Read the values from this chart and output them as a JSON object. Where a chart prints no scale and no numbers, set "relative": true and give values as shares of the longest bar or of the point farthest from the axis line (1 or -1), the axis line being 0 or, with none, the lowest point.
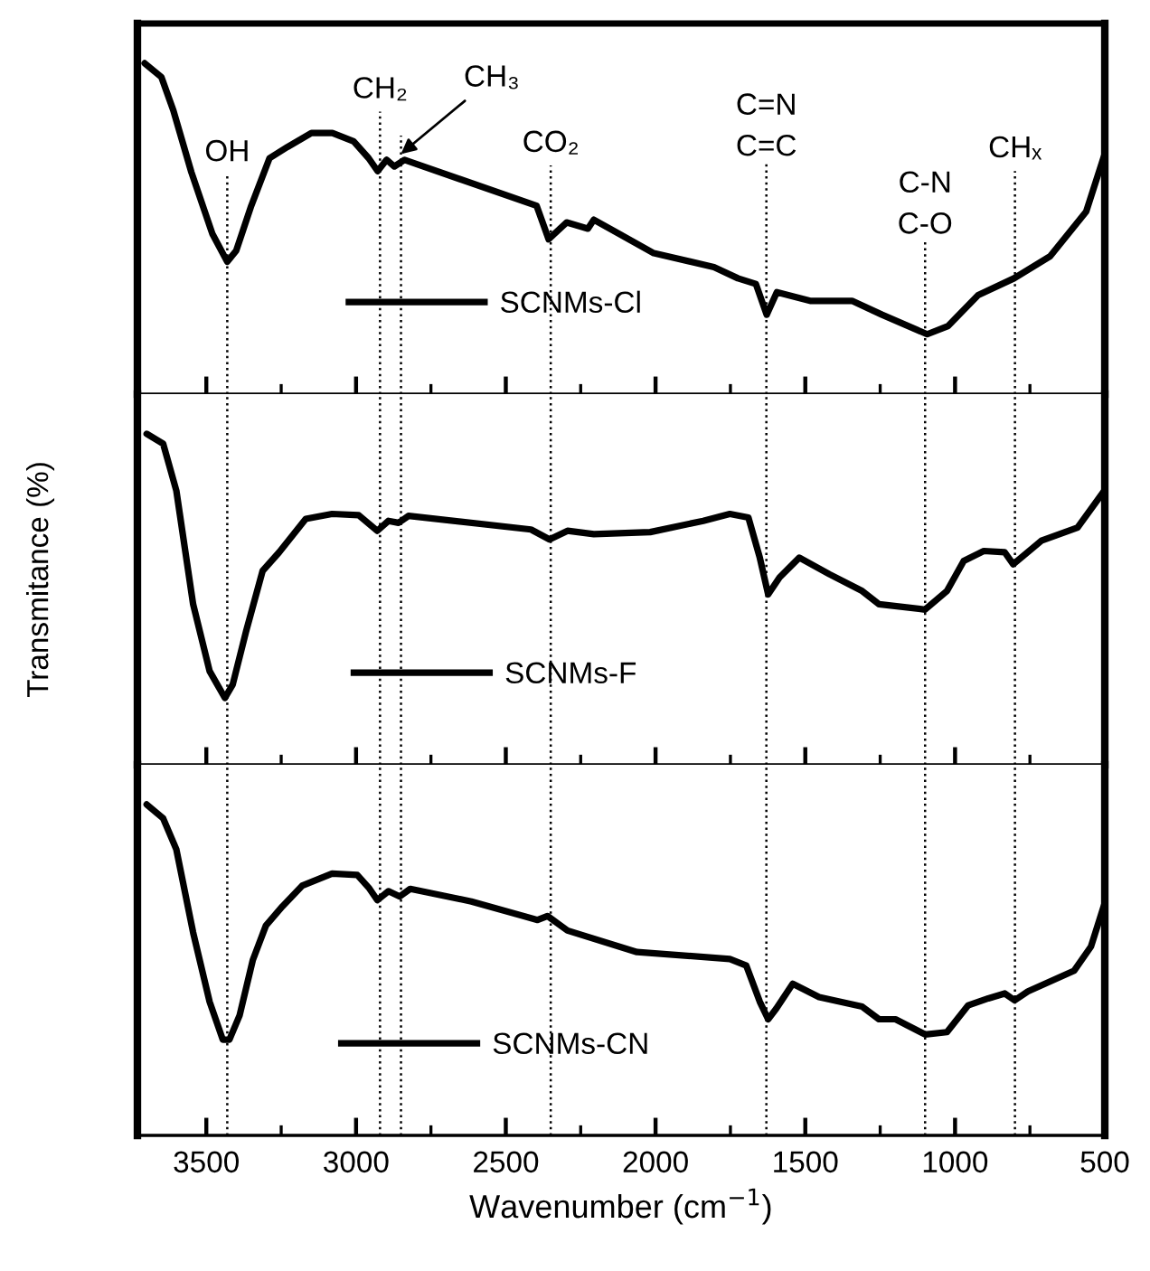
{
  "chart_data": [
    {
      "type": "line",
      "relative": true,
      "xlim": [
        3730,
        500
      ],
      "xticks": [
        3500,
        {
          "value": 3250,
          "label": null
        },
        3000,
        {
          "value": 2750,
          "label": null
        },
        2500,
        {
          "value": 2250,
          "label": null
        },
        2000,
        {
          "value": 1750,
          "label": null
        },
        1500,
        {
          "value": 1250,
          "label": null
        },
        1000,
        {
          "value": 750,
          "label": null
        },
        500
      ],
      "tick_labels": false,
      "legend": "bottom",
      "grid": false,
      "marker": "none",
      "line_style": "solid",
      "x": [
        3706,
        3650,
        3610,
        3550,
        3480,
        3430,
        3400,
        3350,
        3289,
        3229,
        3149,
        3079,
        3008,
        2958,
        2928,
        2898,
        2872,
        2838,
        2397,
        2357,
        2297,
        2226,
        2206,
        2006,
        1805,
        1725,
        1665,
        1629,
        1595,
        1484,
        1344,
        1244,
        1093,
        1023,
        923,
        803,
        682,
        562,
        502
      ],
      "series": [
        {
          "name": "SCNMs-Cl",
          "color": "#000000",
          "values": [
            1.0,
            0.958,
            0.857,
            0.671,
            0.485,
            0.4,
            0.434,
            0.569,
            0.713,
            0.747,
            0.789,
            0.789,
            0.764,
            0.713,
            0.674,
            0.708,
            0.688,
            0.708,
            0.569,
            0.468,
            0.519,
            0.5,
            0.527,
            0.426,
            0.384,
            0.35,
            0.333,
            0.24,
            0.308,
            0.282,
            0.282,
            0.24,
            0.181,
            0.206,
            0.299,
            0.35,
            0.417,
            0.552,
            0.721
          ]
        }
      ],
      "ref_lines": [
        {
          "axis": "x",
          "value": 3430,
          "color": "#000000",
          "line_style": "dotted",
          "label": "OH"
        },
        {
          "axis": "x",
          "value": 2920,
          "color": "#000000",
          "line_style": "dotted",
          "label": "CH₂"
        },
        {
          "axis": "x",
          "value": 2850,
          "color": "#000000",
          "line_style": "dotted",
          "label": "CH₃"
        },
        {
          "axis": "x",
          "value": 2350,
          "color": "#000000",
          "line_style": "dotted",
          "label": "CO₂"
        },
        {
          "axis": "x",
          "value": 1630,
          "color": "#000000",
          "line_style": "dotted",
          "label": "C=N\nC=C"
        },
        {
          "axis": "x",
          "value": 1100,
          "color": "#000000",
          "line_style": "dotted",
          "label": "C-N\nC-O"
        },
        {
          "axis": "x",
          "value": 800,
          "color": "#000000",
          "line_style": "dotted",
          "label": "CHₓ"
        }
      ]
    },
    {
      "type": "line",
      "relative": true,
      "xlim": [
        3730,
        500
      ],
      "xticks": [
        3500,
        {
          "value": 3250,
          "label": null
        },
        3000,
        {
          "value": 2750,
          "label": null
        },
        2500,
        {
          "value": 2250,
          "label": null
        },
        2000,
        {
          "value": 1750,
          "label": null
        },
        1500,
        {
          "value": 1250,
          "label": null
        },
        1000,
        {
          "value": 750,
          "label": null
        },
        500
      ],
      "tick_labels": false,
      "legend": "bottom",
      "grid": false,
      "marker": "none",
      "line_style": "solid",
      "ylabel": "Transmitance (%)",
      "x": [
        3699,
        3644,
        3600,
        3544,
        3489,
        3438,
        3412,
        3367,
        3312,
        3257,
        3168,
        3080,
        2991,
        2929,
        2892,
        2858,
        2825,
        2416,
        2354,
        2294,
        2206,
        2018,
        1841,
        1752,
        1690,
        1652,
        1624,
        1586,
        1520,
        1420,
        1310,
        1254,
        1100,
        1027,
        971,
        904,
        834,
        806,
        712,
        591,
        502
      ],
      "series": [
        {
          "name": "SCNMs-F",
          "color": "#000000",
          "values": [
            1.0,
            0.97,
            0.828,
            0.485,
            0.283,
            0.202,
            0.242,
            0.404,
            0.586,
            0.642,
            0.743,
            0.758,
            0.754,
            0.707,
            0.737,
            0.731,
            0.752,
            0.711,
            0.681,
            0.707,
            0.697,
            0.703,
            0.737,
            0.758,
            0.747,
            0.626,
            0.515,
            0.566,
            0.626,
            0.576,
            0.525,
            0.485,
            0.469,
            0.525,
            0.616,
            0.646,
            0.642,
            0.606,
            0.677,
            0.717,
            0.828
          ]
        }
      ],
      "ref_lines": [
        {
          "axis": "x",
          "value": 3430,
          "color": "#000000",
          "line_style": "dotted"
        },
        {
          "axis": "x",
          "value": 2920,
          "color": "#000000",
          "line_style": "dotted"
        },
        {
          "axis": "x",
          "value": 2850,
          "color": "#000000",
          "line_style": "dotted"
        },
        {
          "axis": "x",
          "value": 2350,
          "color": "#000000",
          "line_style": "dotted"
        },
        {
          "axis": "x",
          "value": 1630,
          "color": "#000000",
          "line_style": "dotted"
        },
        {
          "axis": "x",
          "value": 1100,
          "color": "#000000",
          "line_style": "dotted"
        },
        {
          "axis": "x",
          "value": 800,
          "color": "#000000",
          "line_style": "dotted"
        }
      ]
    },
    {
      "type": "line",
      "relative": true,
      "xlim": [
        3730,
        500
      ],
      "xticks": [
        3500,
        {
          "value": 3250,
          "label": null
        },
        3000,
        {
          "value": 2750,
          "label": null
        },
        2500,
        {
          "value": 2250,
          "label": null
        },
        2000,
        {
          "value": 1750,
          "label": null
        },
        1500,
        {
          "value": 1250,
          "label": null
        },
        1000,
        {
          "value": 750,
          "label": null
        },
        500
      ],
      "tick_labels": "x",
      "legend": "bottom",
      "grid": false,
      "marker": "none",
      "line_style": "solid",
      "xlabel": "Wavenumber (cm$^{−1}$)",
      "x": [
        3699,
        3644,
        3600,
        3544,
        3489,
        3445,
        3423,
        3389,
        3345,
        3301,
        3246,
        3179,
        3080,
        2996,
        2958,
        2929,
        2892,
        2854,
        2819,
        2615,
        2394,
        2361,
        2294,
        2062,
        1752,
        1697,
        1652,
        1624,
        1597,
        1542,
        1454,
        1310,
        1254,
        1199,
        1100,
        1027,
        956,
        889,
        834,
        801,
        757,
        602,
        546,
        502
      ],
      "series": [
        {
          "name": "SCNMs-CN",
          "color": "#000000",
          "values": [
            1.0,
            0.958,
            0.864,
            0.613,
            0.404,
            0.289,
            0.289,
            0.362,
            0.529,
            0.634,
            0.692,
            0.755,
            0.791,
            0.787,
            0.749,
            0.711,
            0.738,
            0.722,
            0.745,
            0.707,
            0.651,
            0.663,
            0.619,
            0.554,
            0.533,
            0.513,
            0.404,
            0.351,
            0.383,
            0.458,
            0.418,
            0.389,
            0.351,
            0.351,
            0.305,
            0.312,
            0.393,
            0.414,
            0.429,
            0.408,
            0.435,
            0.498,
            0.571,
            0.697
          ]
        }
      ],
      "ref_lines": [
        {
          "axis": "x",
          "value": 3430,
          "color": "#000000",
          "line_style": "dotted"
        },
        {
          "axis": "x",
          "value": 2920,
          "color": "#000000",
          "line_style": "dotted"
        },
        {
          "axis": "x",
          "value": 2850,
          "color": "#000000",
          "line_style": "dotted"
        },
        {
          "axis": "x",
          "value": 2350,
          "color": "#000000",
          "line_style": "dotted"
        },
        {
          "axis": "x",
          "value": 1630,
          "color": "#000000",
          "line_style": "dotted"
        },
        {
          "axis": "x",
          "value": 1100,
          "color": "#000000",
          "line_style": "dotted"
        },
        {
          "axis": "x",
          "value": 800,
          "color": "#000000",
          "line_style": "dotted"
        }
      ]
    }
  ]
}
